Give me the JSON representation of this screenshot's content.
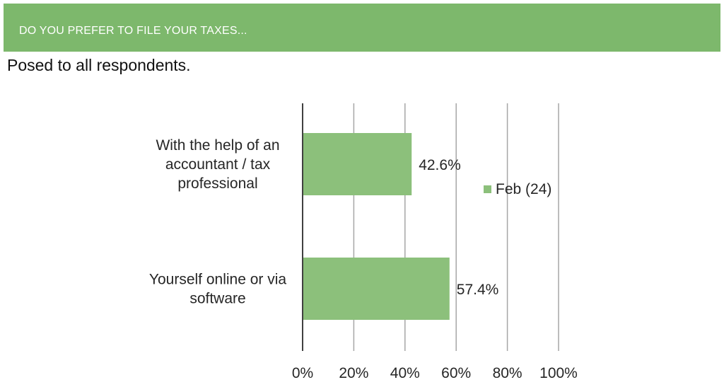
{
  "header": {
    "title": "DO YOU PREFER TO FILE YOUR TAXES..."
  },
  "subtitle": "Posed to all respondents.",
  "colors": {
    "header_bg": "#7db86c",
    "bar": "#8cc07b",
    "gridline": "#a6a6a6",
    "axis": "#404040"
  },
  "chart_data": {
    "type": "bar",
    "orientation": "horizontal",
    "categories": [
      [
        "With the help of an",
        "accountant / tax",
        "professional"
      ],
      [
        "Yourself online or via",
        "software"
      ]
    ],
    "series": [
      {
        "name": "Feb (24)",
        "values": [
          42.6,
          57.4
        ]
      }
    ],
    "data_labels": [
      "42.6%",
      "57.4%"
    ],
    "xlim": [
      0,
      100
    ],
    "x_ticks": [
      "0%",
      "20%",
      "40%",
      "60%",
      "80%",
      "100%"
    ],
    "grid": true,
    "legend": "right"
  }
}
